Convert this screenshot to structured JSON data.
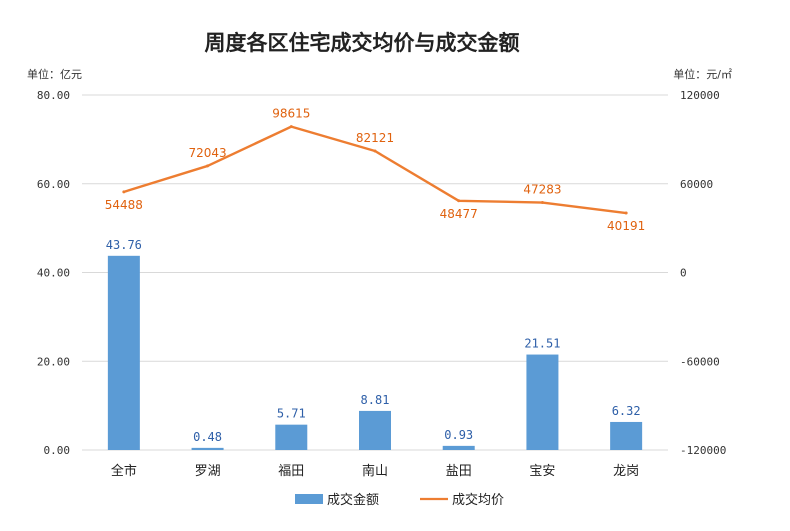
{
  "chart_data": {
    "type": "bar",
    "title": "周度各区住宅成交均价与成交金额",
    "left_unit": "单位：亿元",
    "right_unit": "单位：元/㎡",
    "categories": [
      "全市",
      "罗湖",
      "福田",
      "南山",
      "盐田",
      "宝安",
      "龙岗"
    ],
    "series": [
      {
        "name": "成交金额",
        "type": "bar",
        "axis": "left",
        "values": [
          43.76,
          0.48,
          5.71,
          8.81,
          0.93,
          21.51,
          6.32
        ],
        "labels": [
          "43.76",
          "0.48",
          "5.71",
          "8.81",
          "0.93",
          "21.51",
          "6.32"
        ],
        "color": "#5b9bd5"
      },
      {
        "name": "成交均价",
        "type": "line",
        "axis": "right",
        "values": [
          54488,
          72043,
          98615,
          82121,
          48477,
          47283,
          40191
        ],
        "labels": [
          "54488",
          "72043",
          "98615",
          "82121",
          "48477",
          "47283",
          "40191"
        ],
        "color": "#ed7d31"
      }
    ],
    "y_left": {
      "min": 0,
      "max": 80,
      "ticks": [
        "0.00",
        "20.00",
        "40.00",
        "60.00",
        "80.00"
      ]
    },
    "y_right": {
      "min": -120000,
      "max": 120000,
      "ticks": [
        "-120000",
        "-60000",
        "0",
        "60000",
        "120000"
      ]
    },
    "grid": true,
    "legend": "bottom"
  }
}
